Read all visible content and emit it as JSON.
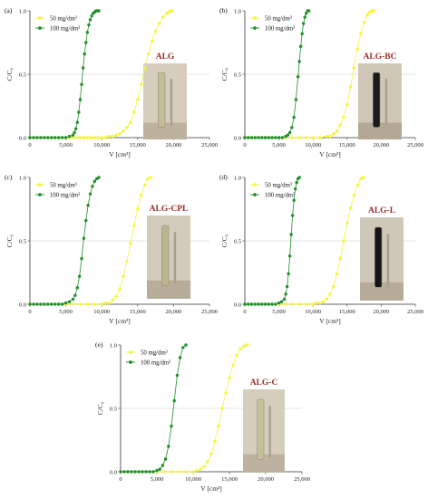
{
  "colors": {
    "series_50": "#f5f53a",
    "series_100": "#1f8f2a",
    "photo_label": "#9c2a2a",
    "axis": "#333333",
    "guide": "#bbbbbb"
  },
  "chart_data": [
    {
      "type": "scatter",
      "panel_label": "(a)",
      "photo_label": "ALG",
      "xlabel": "V [cm³]",
      "ylabel": "C/C₀",
      "xlim": [
        0,
        25000
      ],
      "ylim": [
        0,
        1.0
      ],
      "xticks": [
        "0",
        "5,000",
        "10,000",
        "15,000",
        "20,000",
        "25,000"
      ],
      "yticks": [
        "0.0",
        "0.5",
        "1.0"
      ],
      "legend": "top-left",
      "grid": false,
      "series": [
        {
          "name": "50 mg/dm³",
          "color": "yellow",
          "x": [
            0,
            500,
            1000,
            1500,
            2000,
            2500,
            3000,
            3500,
            4000,
            4500,
            5000,
            5500,
            6000,
            6500,
            7000,
            7500,
            8000,
            8500,
            9000,
            9500,
            10000,
            10500,
            11000,
            11500,
            12000,
            12500,
            13000,
            13500,
            14000,
            14500,
            15000,
            15500,
            16000,
            16500,
            17000,
            17500,
            18000,
            18500,
            19000,
            19300,
            19600,
            19800
          ],
          "y": [
            0,
            0,
            0,
            0,
            0,
            0,
            0,
            0,
            0,
            0,
            0,
            0,
            0,
            0,
            0,
            0,
            0,
            0,
            0,
            0,
            0,
            0,
            0.01,
            0.01,
            0.02,
            0.03,
            0.05,
            0.08,
            0.12,
            0.2,
            0.3,
            0.42,
            0.55,
            0.66,
            0.76,
            0.84,
            0.9,
            0.95,
            0.98,
            0.99,
            1.0,
            1.0
          ]
        },
        {
          "name": "100 mg/dm³",
          "color": "green",
          "x": [
            0,
            500,
            1000,
            1500,
            2000,
            2500,
            3000,
            3500,
            4000,
            4500,
            5000,
            5500,
            6000,
            6200,
            6400,
            6600,
            6800,
            7000,
            7200,
            7400,
            7600,
            7800,
            8000,
            8200,
            8400,
            8600,
            8800,
            9000,
            9200,
            9400,
            9600
          ],
          "y": [
            0,
            0,
            0,
            0,
            0,
            0,
            0,
            0,
            0,
            0,
            0,
            0.01,
            0.02,
            0.04,
            0.07,
            0.12,
            0.2,
            0.3,
            0.42,
            0.55,
            0.66,
            0.75,
            0.83,
            0.89,
            0.93,
            0.96,
            0.98,
            0.99,
            1.0,
            1.0,
            1.0
          ]
        }
      ]
    },
    {
      "type": "scatter",
      "panel_label": "(b)",
      "photo_label": "ALG-BC",
      "xlabel": "V [cm³]",
      "ylabel": "C/C₀",
      "xlim": [
        0,
        25000
      ],
      "ylim": [
        0,
        1.0
      ],
      "xticks": [
        "0",
        "5,000",
        "10,000",
        "15,000",
        "20,000",
        "25,000"
      ],
      "yticks": [
        "0.0",
        "0.5",
        "1.0"
      ],
      "legend": "top-left",
      "grid": false,
      "series": [
        {
          "name": "50 mg/dm³",
          "color": "yellow",
          "x": [
            0,
            1000,
            2000,
            3000,
            4000,
            5000,
            6000,
            7000,
            8000,
            9000,
            10000,
            11000,
            12000,
            12500,
            13000,
            13500,
            14000,
            14500,
            15000,
            15500,
            16000,
            16500,
            17000,
            17500,
            18000,
            18300,
            18600,
            18900
          ],
          "y": [
            0,
            0,
            0,
            0,
            0,
            0,
            0,
            0,
            0,
            0,
            0,
            0,
            0.01,
            0.01,
            0.03,
            0.05,
            0.1,
            0.16,
            0.26,
            0.4,
            0.55,
            0.7,
            0.82,
            0.91,
            0.97,
            0.99,
            1.0,
            1.0
          ]
        },
        {
          "name": "100 mg/dm³",
          "color": "green",
          "x": [
            0,
            500,
            1000,
            1500,
            2000,
            2500,
            3000,
            3500,
            4000,
            4500,
            5000,
            5500,
            6000,
            6300,
            6600,
            6900,
            7200,
            7500,
            7800,
            8000,
            8200,
            8400,
            8600,
            8800,
            9000,
            9200,
            9400
          ],
          "y": [
            0,
            0,
            0,
            0,
            0,
            0,
            0,
            0,
            0,
            0,
            0,
            0,
            0.01,
            0.02,
            0.04,
            0.08,
            0.16,
            0.3,
            0.48,
            0.6,
            0.72,
            0.82,
            0.9,
            0.95,
            0.98,
            1.0,
            1.0
          ]
        }
      ]
    },
    {
      "type": "scatter",
      "panel_label": "(c)",
      "photo_label": "ALG-CPL",
      "xlabel": "V [cm³]",
      "ylabel": "C/C₀",
      "xlim": [
        0,
        25000
      ],
      "ylim": [
        0,
        1.0
      ],
      "xticks": [
        "0",
        "5,000",
        "10,000",
        "15,000",
        "20,000",
        "25,000"
      ],
      "yticks": [
        "0.0",
        "0.5",
        "1.0"
      ],
      "legend": "top-left",
      "grid": false,
      "series": [
        {
          "name": "50 mg/dm³",
          "color": "yellow",
          "x": [
            0,
            1000,
            2000,
            3000,
            4000,
            5000,
            6000,
            7000,
            8000,
            9000,
            10000,
            10500,
            11000,
            11500,
            12000,
            12500,
            13000,
            13500,
            14000,
            14500,
            15000,
            15500,
            16000,
            16400,
            16800
          ],
          "y": [
            0,
            0,
            0,
            0,
            0,
            0,
            0,
            0,
            0,
            0,
            0,
            0.01,
            0.01,
            0.03,
            0.06,
            0.12,
            0.22,
            0.34,
            0.48,
            0.62,
            0.75,
            0.86,
            0.94,
            0.99,
            1.0
          ]
        },
        {
          "name": "100 mg/dm³",
          "color": "green",
          "x": [
            0,
            500,
            1000,
            1500,
            2000,
            2500,
            3000,
            3500,
            4000,
            4500,
            5000,
            5500,
            6000,
            6300,
            6600,
            6900,
            7200,
            7500,
            7800,
            8100,
            8400,
            8700,
            9000,
            9300,
            9600
          ],
          "y": [
            0,
            0,
            0,
            0,
            0,
            0,
            0,
            0,
            0,
            0,
            0.01,
            0.02,
            0.04,
            0.07,
            0.13,
            0.22,
            0.36,
            0.52,
            0.66,
            0.78,
            0.87,
            0.93,
            0.97,
            0.99,
            1.0
          ]
        }
      ]
    },
    {
      "type": "scatter",
      "panel_label": "(d)",
      "photo_label": "ALG-L",
      "xlabel": "V [cm³]",
      "ylabel": "C/C₀",
      "xlim": [
        0,
        25000
      ],
      "ylim": [
        0,
        1.0
      ],
      "xticks": [
        "0",
        "5,000",
        "10,000",
        "15,000",
        "20,000",
        "25,000"
      ],
      "yticks": [
        "0.0",
        "0.5",
        "1.0"
      ],
      "legend": "top-left",
      "grid": false,
      "series": [
        {
          "name": "50 mg/dm³",
          "color": "yellow",
          "x": [
            0,
            1000,
            2000,
            3000,
            4000,
            5000,
            6000,
            7000,
            8000,
            9000,
            10000,
            10500,
            11000,
            11500,
            12000,
            12500,
            13000,
            13500,
            14000,
            14500,
            15000,
            15500,
            16000,
            16500,
            17000,
            17400
          ],
          "y": [
            0,
            0,
            0,
            0,
            0,
            0,
            0,
            0,
            0,
            0,
            0,
            0.01,
            0.01,
            0.02,
            0.04,
            0.08,
            0.14,
            0.24,
            0.36,
            0.5,
            0.64,
            0.76,
            0.86,
            0.94,
            0.99,
            1.0
          ]
        },
        {
          "name": "100 mg/dm³",
          "color": "green",
          "x": [
            0,
            500,
            1000,
            1500,
            2000,
            2500,
            3000,
            3500,
            4000,
            4500,
            5000,
            5400,
            5800,
            6000,
            6200,
            6400,
            6600,
            6800,
            7000,
            7200,
            7400,
            7600,
            7800,
            8000
          ],
          "y": [
            0,
            0,
            0,
            0,
            0,
            0,
            0,
            0,
            0,
            0,
            0.01,
            0.02,
            0.04,
            0.08,
            0.14,
            0.24,
            0.38,
            0.55,
            0.7,
            0.82,
            0.91,
            0.96,
            0.99,
            1.0
          ]
        }
      ]
    },
    {
      "type": "scatter",
      "panel_label": "(e)",
      "photo_label": "ALG-C",
      "xlabel": "V [cm³]",
      "ylabel": "C/C₀",
      "xlim": [
        0,
        25000
      ],
      "ylim": [
        0,
        1.0
      ],
      "xticks": [
        "0",
        "5,000",
        "10,000",
        "15,000",
        "20,000",
        "25,000"
      ],
      "yticks": [
        "0.0",
        "0.5",
        "1.0"
      ],
      "legend": "top-left",
      "grid": false,
      "series": [
        {
          "name": "50 mg/dm³",
          "color": "yellow",
          "x": [
            0,
            1000,
            2000,
            3000,
            4000,
            5000,
            6000,
            7000,
            8000,
            9000,
            10000,
            10500,
            11000,
            11500,
            12000,
            12500,
            13000,
            13500,
            14000,
            14500,
            15000,
            15500,
            16000,
            16500,
            17000,
            17400
          ],
          "y": [
            0,
            0,
            0,
            0,
            0,
            0,
            0,
            0,
            0,
            0,
            0,
            0.01,
            0.02,
            0.04,
            0.08,
            0.14,
            0.24,
            0.36,
            0.5,
            0.62,
            0.74,
            0.84,
            0.92,
            0.97,
            0.99,
            1.0
          ]
        },
        {
          "name": "100 mg/dm³",
          "color": "green",
          "x": [
            0,
            500,
            1000,
            1500,
            2000,
            2500,
            3000,
            3500,
            4000,
            4500,
            5000,
            5400,
            5800,
            6200,
            6600,
            7000,
            7400,
            7800,
            8200,
            8600,
            9000
          ],
          "y": [
            0,
            0,
            0,
            0,
            0,
            0,
            0,
            0,
            0,
            0,
            0.01,
            0.02,
            0.05,
            0.1,
            0.2,
            0.36,
            0.56,
            0.76,
            0.9,
            0.98,
            1.0
          ]
        }
      ]
    }
  ]
}
